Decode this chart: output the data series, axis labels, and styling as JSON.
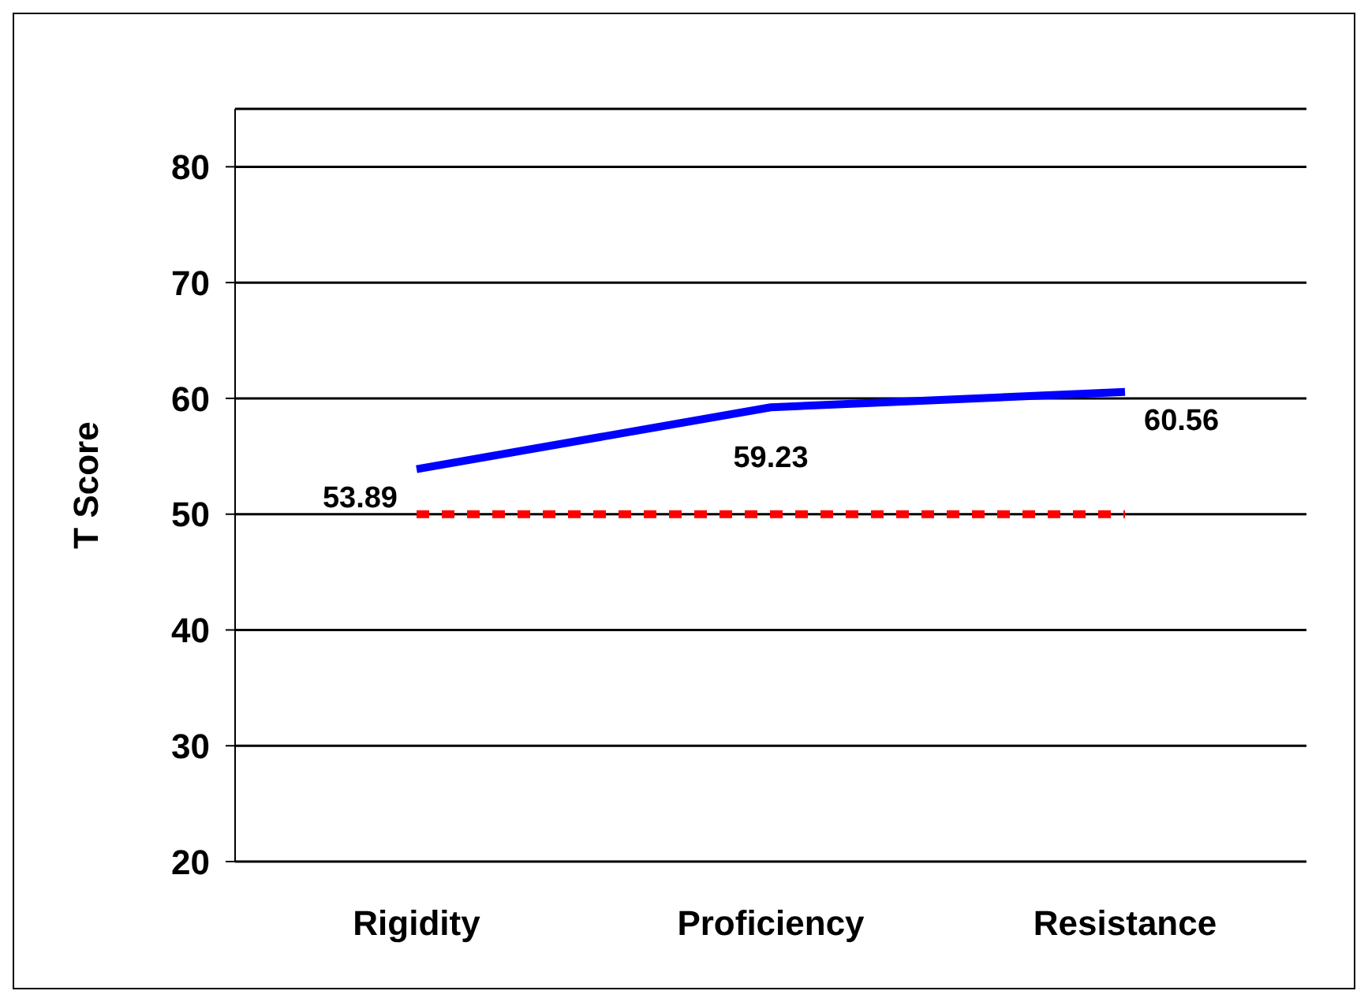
{
  "chart_data": {
    "type": "line",
    "ylabel": "T Score",
    "categories": [
      "Rigidity",
      "Proficiency",
      "Resistance"
    ],
    "series": [
      {
        "color": "#0000ff",
        "values": [
          53.89,
          59.23,
          60.56
        ],
        "value_labels": [
          "53.89",
          "59.23",
          "60.56"
        ]
      },
      {
        "color": "#ff0000",
        "values": [
          50,
          50,
          50
        ],
        "line_style": "dashed"
      }
    ],
    "ylim": [
      20,
      85
    ],
    "yticks": [
      20,
      30,
      40,
      50,
      60,
      70,
      80
    ],
    "grid": "y",
    "marker": "none"
  }
}
